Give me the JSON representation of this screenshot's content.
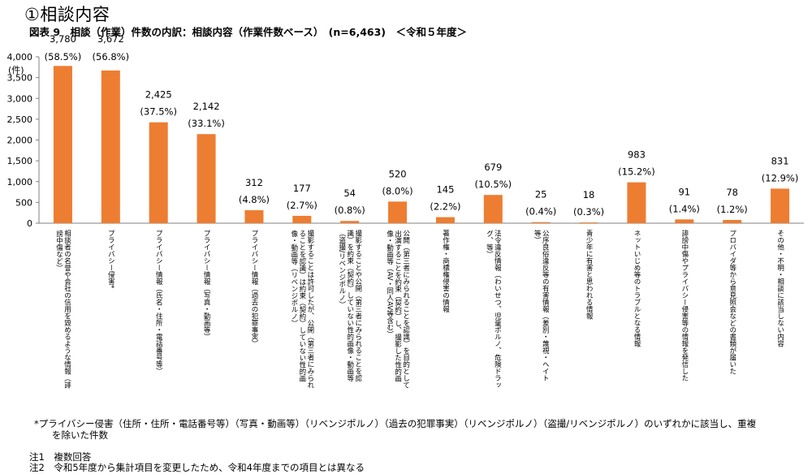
{
  "heading": "①相談内容",
  "subtitle": "図表 9　相談（作業）件数の内訳：相談内容（作業件数ベース）　(n=6,463)　＜令和５年度＞",
  "footnotes": {
    "asterisk_line1": "*プライバシー侵害（住所・住所・電話番号等）（写真・動画等）（リベンジポルノ）（過去の犯罪事実）（リベンジポルノ）（盗撮/リベンジポルノ）のいずれかに該当し、重複",
    "asterisk_line2": "を除いた件数",
    "note1": "注1　複数回答",
    "note2": "注2　令和5年度から集計項目を変更したため、令和4年度までの項目とは異なる"
  },
  "colors": {
    "bar": "#ED7D31",
    "axis": "#808080"
  },
  "chart_data": {
    "type": "bar",
    "ylabel": "(件)",
    "ylim": [
      0,
      4000
    ],
    "yticks": [
      "0",
      "500",
      "1,000",
      "1,500",
      "2,000",
      "2,500",
      "3,000",
      "3,500",
      "4,000"
    ],
    "grid": false,
    "categories": [
      "相談者の名誉や会社の信用を毀めるような情報（誹謗中傷など）",
      "プライバシー侵害*",
      "プライバシー情報（氏名・住所・電話番号等）",
      "プライバシー情報（写真・動画等）",
      "プライバシー情報（過去の犯罪事実）",
      "撮影することは許可したが、公開（第三者にみられることを認識）は約束（契約）していない性的画像・動画等（リベンジポルノ）",
      "撮影することや公開（第三者にみられることを認識）を約束（契約）していない性的画像・動画等（盗撮/リベンジポルノ）",
      "公開（第三者にみられることを認識）を目的として出演することを約束（契約）し、撮影した性的画像・動画等（AV・同人AV等含む）",
      "著作権・商標権侵害の情報",
      "法令違反情報（わいせつ、児童ポルノ、危険ドラッグ、等）",
      "公序良俗違反等の有害情報（差別・蔑視・ヘイト等）",
      "青少年に有害と思われる情報",
      "ネットいじめ等のトラブルとなる情報",
      "誹謗中傷やプライバシー侵害等の情報を発信した",
      "プロバイダ等から意見照会などの書類が届いた",
      "その他・不明・相談に該当しない内容"
    ],
    "category_lines": [
      [
        "相談者の名誉や会社の信用を毀めるような情報（誹",
        "謗中傷など）"
      ],
      [
        "プライバシー侵害*"
      ],
      [
        "プライバシー情報（氏名・住所・電話番号等）"
      ],
      [
        "プライバシー情報（写真・動画等）"
      ],
      [
        "プライバシー情報（過去の犯罪事実）"
      ],
      [
        "撮影することは許可したが、公開（第三者にみられ",
        "ることを認識）は約束（契約）していない性的画",
        "像・動画等（リベンジポルノ）"
      ],
      [
        "撮影することや公開（第三者にみられることを認",
        "識）を約束（契約）していない性的画像・動画等",
        "（盗撮/リベンジポルノ）"
      ],
      [
        "公開（第三者にみられることを認識）を目的として",
        "出演することを約束（契約）し、撮影した性的画",
        "像・動画等（AV・同人AV等含む）"
      ],
      [
        "著作権・商標権侵害の情報"
      ],
      [
        "法令違反情報（わいせつ、児童ポルノ、危険ドラッ",
        "グ、等）"
      ],
      [
        "公序良俗違反等の有害情報（差別・蔑視・ヘイト",
        "等）"
      ],
      [
        "青少年に有害と思われる情報"
      ],
      [
        "ネットいじめ等のトラブルとなる情報"
      ],
      [
        "誹謗中傷やプライバシー侵害等の情報を発信した"
      ],
      [
        "プロバイダ等から意見照会などの書類が届いた"
      ],
      [
        "その他・不明・相談に該当しない内容"
      ]
    ],
    "values": [
      3780,
      3672,
      2425,
      2142,
      312,
      177,
      54,
      520,
      145,
      679,
      25,
      18,
      983,
      91,
      78,
      831
    ],
    "value_labels": [
      "3,780",
      "3,672",
      "2,425",
      "2,142",
      "312",
      "177",
      "54",
      "520",
      "145",
      "679",
      "25",
      "18",
      "983",
      "91",
      "78",
      "831"
    ],
    "percent_labels": [
      "(58.5%)",
      "(56.8%)",
      "(37.5%)",
      "(33.1%)",
      "(4.8%)",
      "(2.7%)",
      "(0.8%)",
      "(8.0%)",
      "(2.2%)",
      "(10.5%)",
      "(0.4%)",
      "(0.3%)",
      "(15.2%)",
      "(1.4%)",
      "(1.2%)",
      "(12.9%)"
    ]
  }
}
